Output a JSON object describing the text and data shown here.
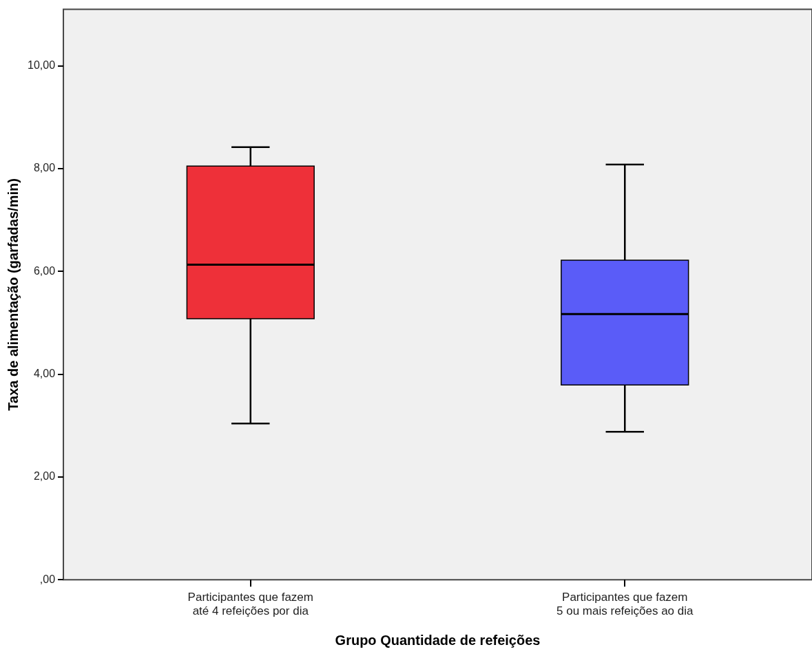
{
  "chart_data": {
    "type": "box",
    "xlabel": "Grupo Quantidade de refeições",
    "ylabel": "Taxa de alimentação (garfadas/min)",
    "categories": [
      "Participantes que fazem até 4 refeições por dia",
      "Participantes que fazem 5 ou mais refeições ao dia"
    ],
    "boxes": [
      {
        "low": 3.04,
        "q1": 5.08,
        "median": 6.13,
        "q3": 8.05,
        "high": 8.42
      },
      {
        "low": 2.88,
        "q1": 3.79,
        "median": 5.17,
        "q3": 6.22,
        "high": 8.08
      }
    ],
    "colors": [
      "#ee3039",
      "#5a5cf8"
    ],
    "ylim": [
      0,
      11.1
    ],
    "yticks": [
      {
        "value": 0,
        "label": ",00"
      },
      {
        "value": 2,
        "label": "2,00"
      },
      {
        "value": 4,
        "label": "4,00"
      },
      {
        "value": 6,
        "label": "6,00"
      },
      {
        "value": 8,
        "label": "8,00"
      },
      {
        "value": 10,
        "label": "10,00"
      }
    ],
    "grid": false,
    "legend": false
  }
}
